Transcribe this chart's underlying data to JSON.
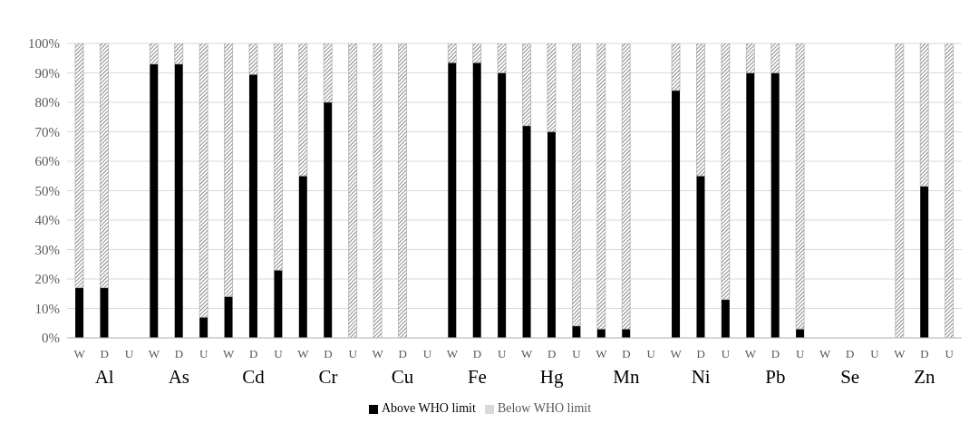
{
  "chart_data": {
    "type": "bar",
    "stacked": true,
    "categories": [
      "W",
      "D",
      "U",
      "W",
      "D",
      "U",
      "W",
      "D",
      "U",
      "W",
      "D",
      "U",
      "W",
      "D",
      "U",
      "W",
      "D",
      "U",
      "W",
      "D",
      "U",
      "W",
      "D",
      "U",
      "W",
      "D",
      "U",
      "W",
      "D",
      "U",
      "W",
      "D",
      "U",
      "W",
      "D",
      "U"
    ],
    "annotations": [
      "Al",
      "As",
      "Cd",
      "Cr",
      "Cu",
      "Fe",
      "Hg",
      "Mn",
      "Ni",
      "Pb",
      "Se",
      "Zn"
    ],
    "series": [
      {
        "name": "Above WHO limit",
        "color": "#000000",
        "values": [
          17,
          17,
          0,
          93,
          93,
          7,
          14,
          89.5,
          23,
          55,
          80,
          0,
          0,
          0,
          0,
          93.5,
          93.5,
          90,
          72,
          70,
          4,
          3,
          3,
          0,
          84,
          55,
          13,
          90,
          90,
          3,
          0,
          0,
          0,
          0,
          51.5,
          0
        ]
      },
      {
        "name": "Below WHO limit",
        "color": "#8c8c8c",
        "values": [
          83,
          83,
          0,
          7,
          7,
          93,
          86,
          10.5,
          77,
          45,
          20,
          100,
          100,
          100,
          0,
          6.5,
          6.5,
          10,
          28,
          30,
          96,
          97,
          97,
          0,
          16,
          45,
          87,
          10,
          10,
          97,
          0,
          0,
          0,
          100,
          48.5,
          100
        ]
      }
    ],
    "ylim": [
      0,
      100
    ],
    "yticks": [
      {
        "value": 0,
        "label": "0%"
      },
      {
        "value": 10,
        "label": "10%"
      },
      {
        "value": 20,
        "label": "20%"
      },
      {
        "value": 30,
        "label": "30%"
      },
      {
        "value": 40,
        "label": "40%"
      },
      {
        "value": 50,
        "label": "50%"
      },
      {
        "value": 60,
        "label": "60%"
      },
      {
        "value": 70,
        "label": "70%"
      },
      {
        "value": 80,
        "label": "80%"
      },
      {
        "value": 90,
        "label": "90%"
      },
      {
        "value": 100,
        "label": "100%"
      }
    ],
    "grid": "y",
    "legend": "bottom"
  }
}
